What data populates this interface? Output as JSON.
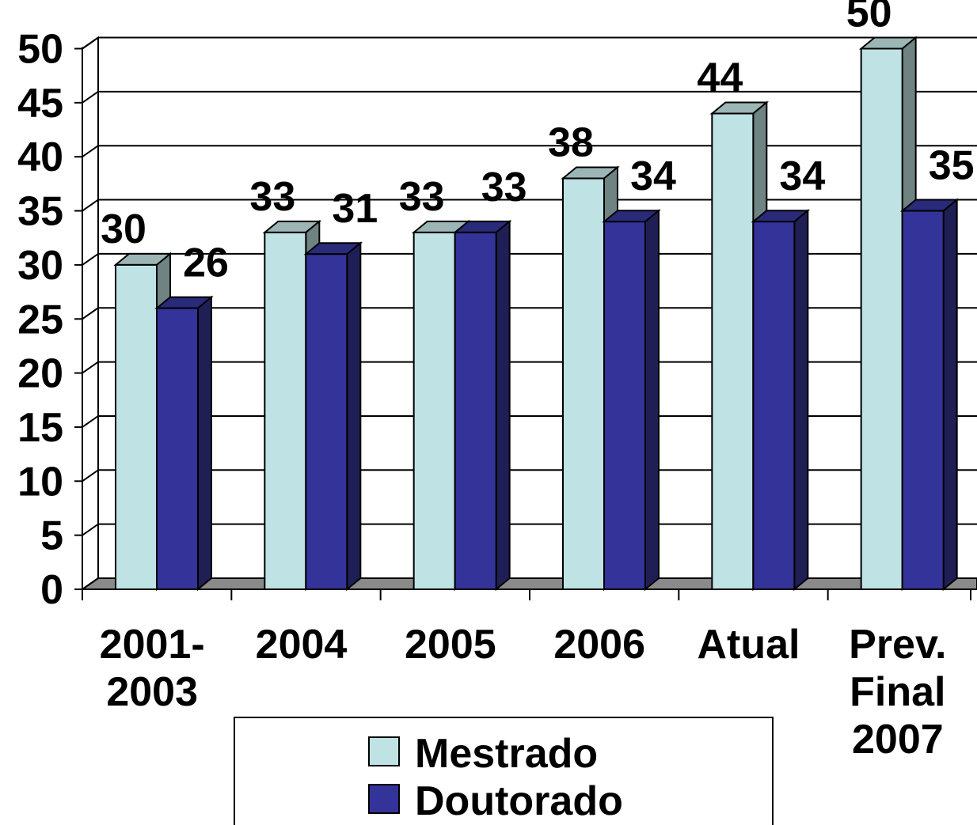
{
  "chart_data": {
    "type": "bar",
    "categories": [
      [
        "2001-",
        "2003"
      ],
      [
        "2004"
      ],
      [
        "2005"
      ],
      [
        "2006"
      ],
      [
        "Atual"
      ],
      [
        "Prev.",
        "Final",
        "2007"
      ]
    ],
    "series": [
      {
        "name": "Mestrado",
        "values": [
          30,
          33,
          33,
          38,
          44,
          50
        ],
        "color": "#BFE2E4",
        "side_color": "#6F8383"
      },
      {
        "name": "Doutorado",
        "values": [
          26,
          31,
          33,
          34,
          34,
          35
        ],
        "color": "#33339A",
        "side_color": "#1F1F55"
      }
    ],
    "yticks": [
      0,
      5,
      10,
      15,
      20,
      25,
      30,
      35,
      40,
      45,
      50
    ],
    "ylim": [
      0,
      50
    ],
    "grid": true,
    "legend_position": "bottom",
    "style": "3d-clustered-column"
  }
}
